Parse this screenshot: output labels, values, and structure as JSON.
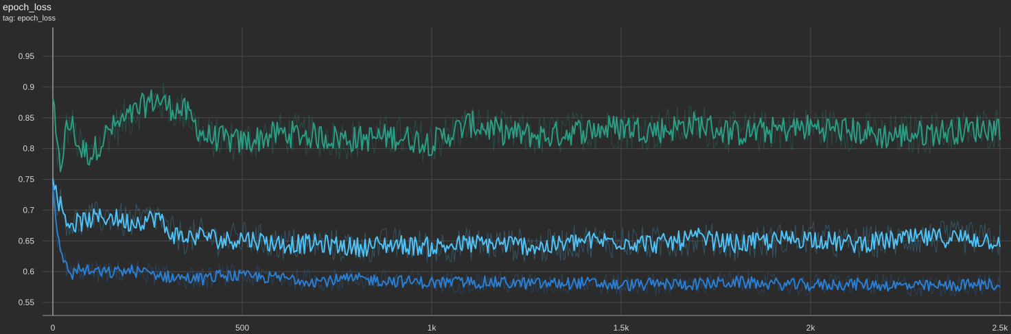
{
  "header": {
    "title": "epoch_loss",
    "subtitle": "tag: epoch_loss"
  },
  "chart_data": {
    "type": "line",
    "title": "epoch_loss",
    "subtitle": "tag: epoch_loss",
    "xlabel": "",
    "ylabel": "",
    "xlim": [
      0,
      2500
    ],
    "ylim": [
      0.53,
      0.98
    ],
    "x_ticks": [
      0,
      500,
      1000,
      1500,
      2000,
      2500
    ],
    "x_tick_labels": [
      "0",
      "500",
      "1k",
      "1.5k",
      "2k",
      "2.5k"
    ],
    "y_ticks": [
      0.55,
      0.6,
      0.65,
      0.7,
      0.75,
      0.8,
      0.85,
      0.9,
      0.95
    ],
    "y_tick_labels": [
      "0.55",
      "0.6",
      "0.65",
      "0.7",
      "0.75",
      "0.8",
      "0.85",
      "0.9",
      "0.95"
    ],
    "grid": true,
    "background": "#2b2b2b",
    "series": [
      {
        "color": "#2a9d84",
        "x": [
          0,
          10,
          20,
          35,
          50,
          70,
          100,
          150,
          200,
          250,
          280,
          300,
          350,
          400,
          450,
          500,
          600,
          700,
          800,
          900,
          1000,
          1100,
          1200,
          1300,
          1400,
          1500,
          1600,
          1700,
          1800,
          1900,
          2000,
          2100,
          2200,
          2300,
          2400,
          2500
        ],
        "y": [
          0.882,
          0.8,
          0.77,
          0.83,
          0.84,
          0.8,
          0.79,
          0.83,
          0.85,
          0.875,
          0.88,
          0.87,
          0.86,
          0.82,
          0.815,
          0.81,
          0.825,
          0.82,
          0.815,
          0.82,
          0.81,
          0.84,
          0.825,
          0.82,
          0.83,
          0.835,
          0.83,
          0.84,
          0.825,
          0.83,
          0.835,
          0.83,
          0.82,
          0.825,
          0.83,
          0.835
        ]
      },
      {
        "color": "#4fc3f7",
        "x": [
          0,
          10,
          20,
          35,
          50,
          70,
          100,
          150,
          200,
          250,
          280,
          300,
          350,
          400,
          450,
          500,
          600,
          700,
          800,
          900,
          1000,
          1100,
          1200,
          1300,
          1400,
          1500,
          1600,
          1700,
          1800,
          1900,
          2000,
          2100,
          2200,
          2300,
          2400,
          2500
        ],
        "y": [
          0.75,
          0.72,
          0.71,
          0.685,
          0.678,
          0.68,
          0.685,
          0.69,
          0.68,
          0.685,
          0.69,
          0.665,
          0.655,
          0.66,
          0.65,
          0.655,
          0.645,
          0.645,
          0.64,
          0.645,
          0.64,
          0.645,
          0.645,
          0.64,
          0.65,
          0.65,
          0.645,
          0.655,
          0.645,
          0.65,
          0.655,
          0.645,
          0.65,
          0.655,
          0.655,
          0.65
        ]
      },
      {
        "color": "#2a7fd4",
        "x": [
          0,
          10,
          20,
          35,
          50,
          70,
          100,
          150,
          200,
          250,
          280,
          300,
          350,
          400,
          450,
          500,
          600,
          700,
          800,
          900,
          1000,
          1100,
          1200,
          1300,
          1400,
          1500,
          1600,
          1700,
          1800,
          1900,
          2000,
          2100,
          2200,
          2300,
          2400,
          2500
        ],
        "y": [
          0.74,
          0.66,
          0.635,
          0.61,
          0.595,
          0.605,
          0.6,
          0.598,
          0.602,
          0.598,
          0.595,
          0.592,
          0.59,
          0.588,
          0.595,
          0.592,
          0.59,
          0.585,
          0.588,
          0.585,
          0.582,
          0.583,
          0.582,
          0.58,
          0.582,
          0.578,
          0.58,
          0.58,
          0.583,
          0.58,
          0.578,
          0.58,
          0.578,
          0.576,
          0.578,
          0.58
        ]
      }
    ]
  }
}
